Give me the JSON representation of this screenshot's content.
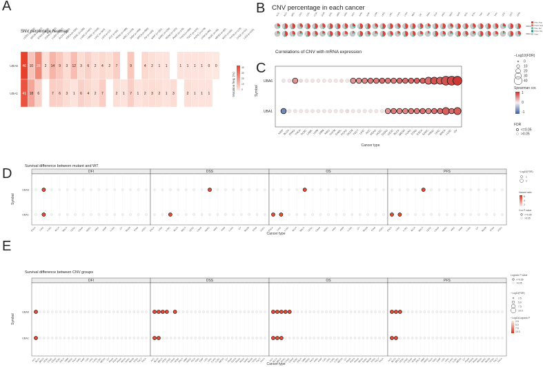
{
  "panels": {
    "A": "A",
    "B": "B",
    "C": "C",
    "D": "D",
    "E": "E"
  },
  "colors": {
    "heat_high": "#e8412b",
    "heat_low": "#fde7df",
    "dot_pos": "#d73027",
    "dot_neg": "#3b5ba5",
    "pie_red": "#d7433b",
    "pie_teal": "#5fb8a3",
    "pie_gray": "#c7c7c7"
  },
  "panelA": {
    "title": "SNV percentage heatmap",
    "legend_title": "Mutation freq. (%)",
    "legend_ticks": [
      "40",
      "30",
      "20",
      "10",
      "0"
    ],
    "genes": [
      "UBA6",
      "UBA1"
    ],
    "cancers": [
      "UCEC (n=531)",
      "SKCM (n=467)",
      "STAD (n=439)",
      "COAD (n=407)",
      "LUAD (n=567)",
      "BLCA (n=411)",
      "ESCA (n=185)",
      "CESC (n=289)",
      "LUSC (n=497)",
      "HNSC (n=510)",
      "LIHC (n=364)",
      "UCS (n=57)",
      "ACC (n=92)",
      "PRAD (n=498)",
      "KIRC (n=370)",
      "GBM (n=390)",
      "BRCA (n=986)",
      "OV (n=436)",
      "KIRP (n=282)",
      "SARC (n=236)",
      "READ (n=155)",
      "PAAD (n=178)",
      "THCA (n=490)",
      "TGCT (n=144)",
      "PCPG (n=179)",
      "UVM (n=80)",
      "DLBC (n=48)",
      "MESO (n=82)",
      "KICH (n=66)",
      "THYM (n=123)",
      "CHOL (n=51)",
      "LGG (n=525)"
    ],
    "matrix": {
      "UBA6": [
        "46",
        "10",
        "26",
        "2",
        "14",
        "9",
        "3",
        "12",
        "3",
        "6",
        "2",
        "4",
        "2",
        "7",
        "",
        "9",
        "",
        "4",
        "2",
        "1",
        "1",
        "",
        "1",
        "1",
        "1",
        "1",
        "0",
        "0",
        "",
        "",
        "",
        ""
      ],
      "UBA1": [
        "41",
        "18",
        "6",
        "",
        "7",
        "6",
        "3",
        "1",
        "6",
        "4",
        "2",
        "7",
        "",
        "2",
        "1",
        "7",
        "1",
        "2",
        "3",
        "2",
        "1",
        "3",
        "",
        "2",
        "1",
        "1",
        "1",
        "",
        "",
        "",
        "",
        ""
      ]
    }
  },
  "panelB": {
    "title": "CNV percentage in each cancer",
    "genes": [
      "UBA6",
      "UBA1"
    ],
    "legend": [
      "Hete. Amp",
      "Homo. Amp",
      "Hete. Del",
      "Homo. Del",
      "None"
    ],
    "cancers": [
      "ACC",
      "BLCA",
      "BRCA",
      "CESC",
      "CHOL",
      "COAD",
      "DLBC",
      "ESCA",
      "GBM",
      "HNSC",
      "KICH",
      "KIRC",
      "KIRP",
      "LAML",
      "LGG",
      "LIHC",
      "LUAD",
      "LUSC",
      "MESO",
      "OV",
      "PAAD",
      "PCPG",
      "PRAD",
      "READ",
      "SARC",
      "SKCM",
      "STAD",
      "TGCT",
      "THCA",
      "THYM",
      "UCEC",
      "UCS",
      "UVM"
    ]
  },
  "panelC": {
    "title": "Correlations of CNV with mRNA expression",
    "ylabel": "Symbol",
    "xlabel": "Cancer type",
    "genes": [
      "UBA6",
      "UBA1"
    ],
    "cancers": [
      "KIRP",
      "BLCA",
      "PRAD",
      "THCA",
      "DLBC",
      "LAML",
      "UVM",
      "GBM",
      "KIRC",
      "THYM",
      "CHOL",
      "PCPG",
      "SKCM",
      "TGCT",
      "LIHC",
      "ACC",
      "READ",
      "UCEC",
      "COAD",
      "CESC",
      "BLCA",
      "MESO",
      "LUAD",
      "STAD",
      "ESCA",
      "SARC",
      "HNSC",
      "LIHC",
      "BRCA",
      "LUSC",
      "OV"
    ],
    "fdr_legend_title": "−Log10(FDR)",
    "fdr_legend": [
      "0",
      "10",
      "20",
      "30",
      "40"
    ],
    "cor_legend_title": "Spearman cor.",
    "cor_ticks": [
      "1",
      "0",
      "-1"
    ],
    "sig_legend_title": "FDR",
    "sig_legend": [
      "<=0.05",
      ">0.05"
    ],
    "values": {
      "UBA6": [
        0.05,
        0.05,
        0.35,
        0.1,
        0.05,
        0.05,
        0.05,
        0.05,
        0.05,
        0.05,
        0.1,
        0.05,
        0.35,
        0.35,
        0.4,
        0.45,
        0.45,
        0.5,
        0.45,
        0.45,
        0.5,
        0.5,
        0.5,
        0.55,
        0.55,
        0.5,
        0.6,
        0.55,
        0.6,
        0.65,
        0.7
      ],
      "UBA1": [
        -0.35,
        0.05,
        0.05,
        0.05,
        0.05,
        0.05,
        0.05,
        0.05,
        0.05,
        0.05,
        0.05,
        0.1,
        0.05,
        0.05,
        0.05,
        0.05,
        0.05,
        0.05,
        0.35,
        0.45,
        0.4,
        0.4,
        0.45,
        0.45,
        0.5,
        0.4,
        0.5,
        0.5,
        0.55,
        0.5,
        0.55
      ]
    },
    "fdr": {
      "UBA6": [
        1,
        1,
        2,
        1,
        1,
        1,
        1,
        1,
        1,
        1,
        1,
        1,
        2,
        2,
        2,
        2,
        2,
        2,
        2,
        2,
        2,
        2,
        2,
        2,
        2,
        3,
        3,
        3,
        4,
        4,
        4
      ],
      "UBA1": [
        2,
        1,
        1,
        1,
        1,
        1,
        1,
        1,
        1,
        1,
        1,
        1,
        1,
        1,
        1,
        1,
        1,
        1,
        2,
        2,
        2,
        2,
        2,
        2,
        2,
        2,
        2,
        2,
        3,
        2,
        3
      ]
    }
  },
  "panelD": {
    "title": "Survival difference between mutant and WT",
    "ylabel": "Symbol",
    "xlabel": "Cancer type",
    "genes": [
      "UBA6",
      "UBA1"
    ],
    "facets": [
      "DFI",
      "DSS",
      "OS",
      "PFS"
    ],
    "cancers": {
      "DFI": [
        "ESCA",
        "LIHC",
        "LUSC",
        "BLCA",
        "BRCA",
        "CESC",
        "COAD",
        "HNSC",
        "KIRC",
        "KIRP",
        "LUAD",
        "OV",
        "SKCM",
        "STAD",
        "UCEC"
      ],
      "DSS": [
        "ESCA",
        "LIHC",
        "LUSC",
        "BLCA",
        "BRCA",
        "CESC",
        "COAD",
        "HNSC",
        "KIRC",
        "KIRP",
        "LUAD",
        "OV",
        "SKCM",
        "STAD",
        "UCEC"
      ],
      "OS": [
        "ESCA",
        "LIHC",
        "LUSC",
        "BLCA",
        "BRCA",
        "CESC",
        "COAD",
        "HNSC",
        "KIRC",
        "KIRP",
        "LUAD",
        "OV",
        "SKCM",
        "STAD",
        "UCEC"
      ],
      "PFS": [
        "ESCA",
        "LIHC",
        "LUSC",
        "BLCA",
        "BRCA",
        "CESC",
        "COAD",
        "HNSC",
        "KIRC",
        "KIRP",
        "LUAD",
        "OV",
        "SKCM",
        "STAD",
        "UCEC"
      ]
    },
    "fdr_legend_title": "−Log10(FDR)",
    "fdr_legend": [
      "1",
      "2"
    ],
    "hr_legend_title": "Hazard ratio",
    "hr_ticks": [
      "6",
      "4",
      "2"
    ],
    "p_legend_title": "Cox P value",
    "p_legend": [
      "<=0.05",
      ">0.05"
    ]
  },
  "panelE": {
    "title": "Survival difference between CNV groups",
    "ylabel": "Symbol",
    "xlabel": "Cancer type",
    "genes": [
      "UBA6",
      "UBA1"
    ],
    "facets": [
      "DFI",
      "DSS",
      "OS",
      "PFS"
    ],
    "p_legend_title": "Logrank P value",
    "p_legend": [
      "<=0.05",
      ">0.05"
    ],
    "fdr_legend_title": "−Log10(FDR)",
    "fdr_legend": [
      "2.5",
      "5.0",
      "7.5",
      "10.0"
    ],
    "lr_legend_title": "−Log10(Logrank P",
    "lr_ticks": [
      "2.5",
      "5.0",
      "7.5",
      "10.0"
    ]
  }
}
